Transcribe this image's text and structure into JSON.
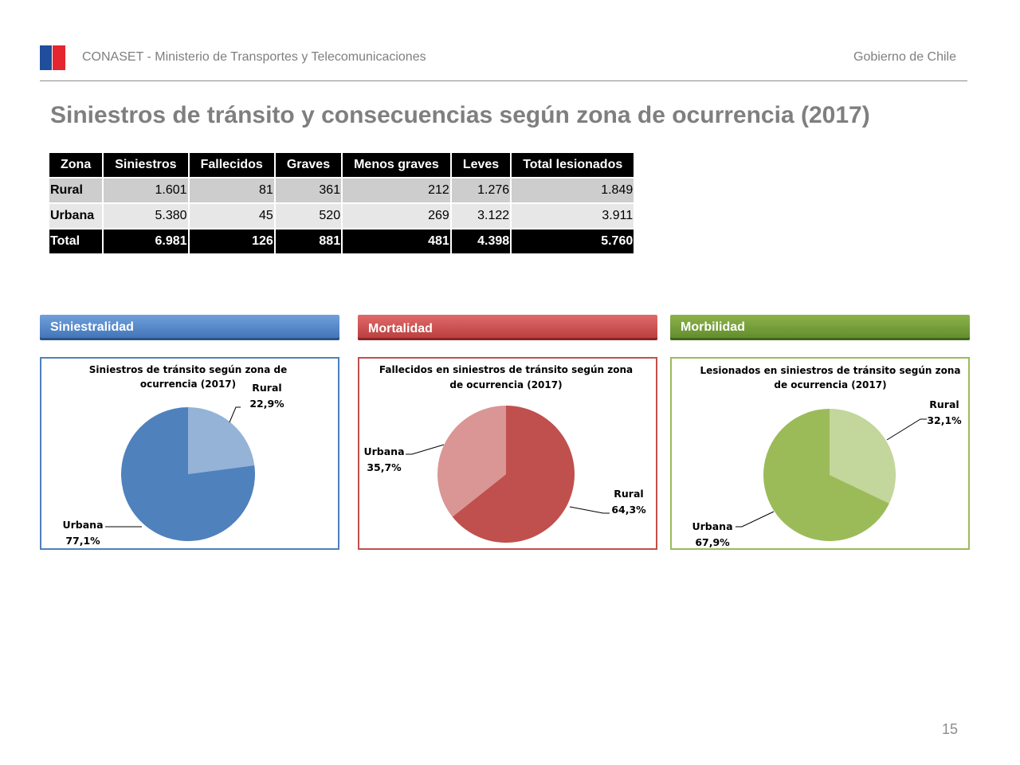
{
  "header": {
    "org": "CONASET - Ministerio de Transportes y Telecomunicaciones",
    "gov": "Gobierno de Chile"
  },
  "title": "Siniestros de tránsito y consecuencias según zona de ocurrencia (2017)",
  "table": {
    "headers": [
      "Zona",
      "Siniestros",
      "Fallecidos",
      "Graves",
      "Menos graves",
      "Leves",
      "Total lesionados"
    ],
    "rows": [
      [
        "Rural",
        "1.601",
        "81",
        "361",
        "212",
        "1.276",
        "1.849"
      ],
      [
        "Urbana",
        "5.380",
        "45",
        "520",
        "269",
        "3.122",
        "3.911"
      ],
      [
        "Total",
        "6.981",
        "126",
        "881",
        "481",
        "4.398",
        "5.760"
      ]
    ]
  },
  "sections": {
    "siniestralidad": "Siniestralidad",
    "mortalidad": "Mortalidad",
    "morbilidad": "Morbilidad"
  },
  "colors": {
    "blue_light": "#95b3d7",
    "blue_dark": "#4f81bd",
    "red_light": "#d99694",
    "red_dark": "#c0504d",
    "green_light": "#c3d69b",
    "green_dark": "#9bbb59"
  },
  "chart_data": [
    {
      "type": "pie",
      "title_line1": "Siniestros de tránsito según zona de",
      "title_line2": "ocurrencia  (2017)",
      "slices": [
        {
          "name": "Rural",
          "value": 22.9,
          "label": "22,9%"
        },
        {
          "name": "Urbana",
          "value": 77.1,
          "label": "77,1%"
        }
      ]
    },
    {
      "type": "pie",
      "title_line1": "Fallecidos en siniestros de tránsito según zona",
      "title_line2": "de ocurrencia  (2017)",
      "slices": [
        {
          "name": "Rural",
          "value": 64.3,
          "label": "64,3%"
        },
        {
          "name": "Urbana",
          "value": 35.7,
          "label": "35,7%"
        }
      ]
    },
    {
      "type": "pie",
      "title_line1": "Lesionados en siniestros de tránsito según zona",
      "title_line2": "de ocurrencia  (2017)",
      "slices": [
        {
          "name": "Rural",
          "value": 32.1,
          "label": "32,1%"
        },
        {
          "name": "Urbana",
          "value": 67.9,
          "label": "67,9%"
        }
      ]
    }
  ],
  "page_number": "15"
}
